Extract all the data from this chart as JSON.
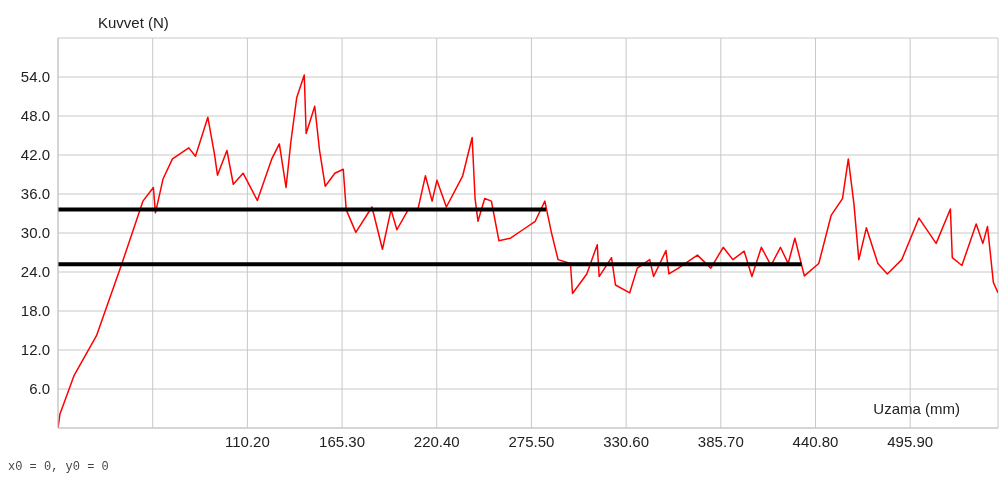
{
  "chart_data": {
    "type": "line",
    "xlabel": "Uzama (mm)",
    "ylabel": "Kuvvet (N)",
    "annotations": [
      "x0 = 0, y0 = 0"
    ],
    "xlim": [
      0,
      547
    ],
    "ylim": [
      0,
      60
    ],
    "xticks": [
      {
        "value": 55.1,
        "label": null
      },
      {
        "value": 110.2,
        "label": "110.20"
      },
      {
        "value": 165.3,
        "label": "165.30"
      },
      {
        "value": 220.4,
        "label": "220.40"
      },
      {
        "value": 275.5,
        "label": "275.50"
      },
      {
        "value": 330.6,
        "label": "330.60"
      },
      {
        "value": 385.7,
        "label": "385.70"
      },
      {
        "value": 440.8,
        "label": "440.80"
      },
      {
        "value": 495.9,
        "label": "495.90"
      }
    ],
    "yticks": [
      {
        "value": 6,
        "label": "6.0"
      },
      {
        "value": 12,
        "label": "12.0"
      },
      {
        "value": 18,
        "label": "18.0"
      },
      {
        "value": 24,
        "label": "24.0"
      },
      {
        "value": 30,
        "label": "30.0"
      },
      {
        "value": 36,
        "label": "36.0"
      },
      {
        "value": 42,
        "label": "42.0"
      },
      {
        "value": 48,
        "label": "48.0"
      },
      {
        "value": 54,
        "label": "54.0"
      }
    ],
    "grid": true,
    "marker": "none",
    "line_style": "solid",
    "series": [
      {
        "color": "#ff0000",
        "x": [
          0,
          1.1,
          9.4,
          22.4,
          37.2,
          49.4,
          55.5,
          56.7,
          61.1,
          66.6,
          76.1,
          80,
          87.2,
          91,
          92.8,
          98.3,
          102,
          107.7,
          116,
          124.4,
          128.8,
          132.7,
          135.5,
          138.9,
          143.3,
          144.4,
          149.4,
          152.2,
          155.5,
          161.1,
          166,
          167.7,
          173.3,
          182.7,
          188.8,
          193.8,
          197.2,
          203.8,
          209.4,
          213.8,
          217.7,
          220.5,
          226,
          235.5,
          241,
          242.7,
          244.4,
          248.3,
          252.2,
          256.6,
          263.3,
          270.5,
          277.7,
          283.3,
          287.1,
          291,
          298.2,
          299.4,
          307.7,
          313.8,
          314.9,
          322.1,
          324.4,
          332.7,
          337.1,
          344.3,
          346.6,
          353.8,
          355.5,
          361,
          372.1,
          379.9,
          387.1,
          392.7,
          399.3,
          403.8,
          409.3,
          414.9,
          420.4,
          424.9,
          428.8,
          434.3,
          442.7,
          449.9,
          456.5,
          459.9,
          463.2,
          466,
          470.4,
          477.1,
          482.6,
          491,
          501,
          511,
          519.3,
          520.4,
          526,
          534.3,
          538.2,
          540.9,
          544.3,
          547
        ],
        "values": [
          0,
          2.1,
          8.1,
          14.2,
          25.3,
          34.9,
          37,
          33.1,
          38.3,
          41.4,
          43.1,
          41.8,
          47.8,
          42.2,
          38.9,
          42.7,
          37.5,
          39.2,
          35,
          41.4,
          43.7,
          37,
          44,
          50.8,
          54.3,
          45.3,
          49.5,
          42.7,
          37.2,
          39.2,
          39.8,
          33.6,
          30.1,
          34,
          27.5,
          33.6,
          30.5,
          33.6,
          33.6,
          38.8,
          34.9,
          38.1,
          34,
          38.8,
          44.7,
          35.3,
          31.8,
          35.3,
          34.9,
          28.8,
          29.2,
          30.5,
          31.8,
          34.9,
          30.1,
          25.9,
          25.3,
          20.7,
          23.7,
          28.2,
          23.3,
          26.2,
          22,
          20.8,
          24.6,
          25.9,
          23.3,
          27.3,
          23.7,
          24.6,
          26.6,
          24.6,
          27.8,
          25.9,
          27.2,
          23.3,
          27.8,
          25,
          27.8,
          25.3,
          29.2,
          23.4,
          25.3,
          32.7,
          35.3,
          41.4,
          34.4,
          25.9,
          30.8,
          25.3,
          23.7,
          25.9,
          32.3,
          28.4,
          33.7,
          26.2,
          25,
          31.4,
          28.4,
          31,
          22.4,
          20.8
        ]
      },
      {
        "color": "#000000",
        "x": [
          0,
          284
        ],
        "values": [
          33.6,
          33.6
        ]
      },
      {
        "color": "#000000",
        "x": [
          0,
          432.7
        ],
        "values": [
          25.2,
          25.2
        ]
      }
    ]
  }
}
